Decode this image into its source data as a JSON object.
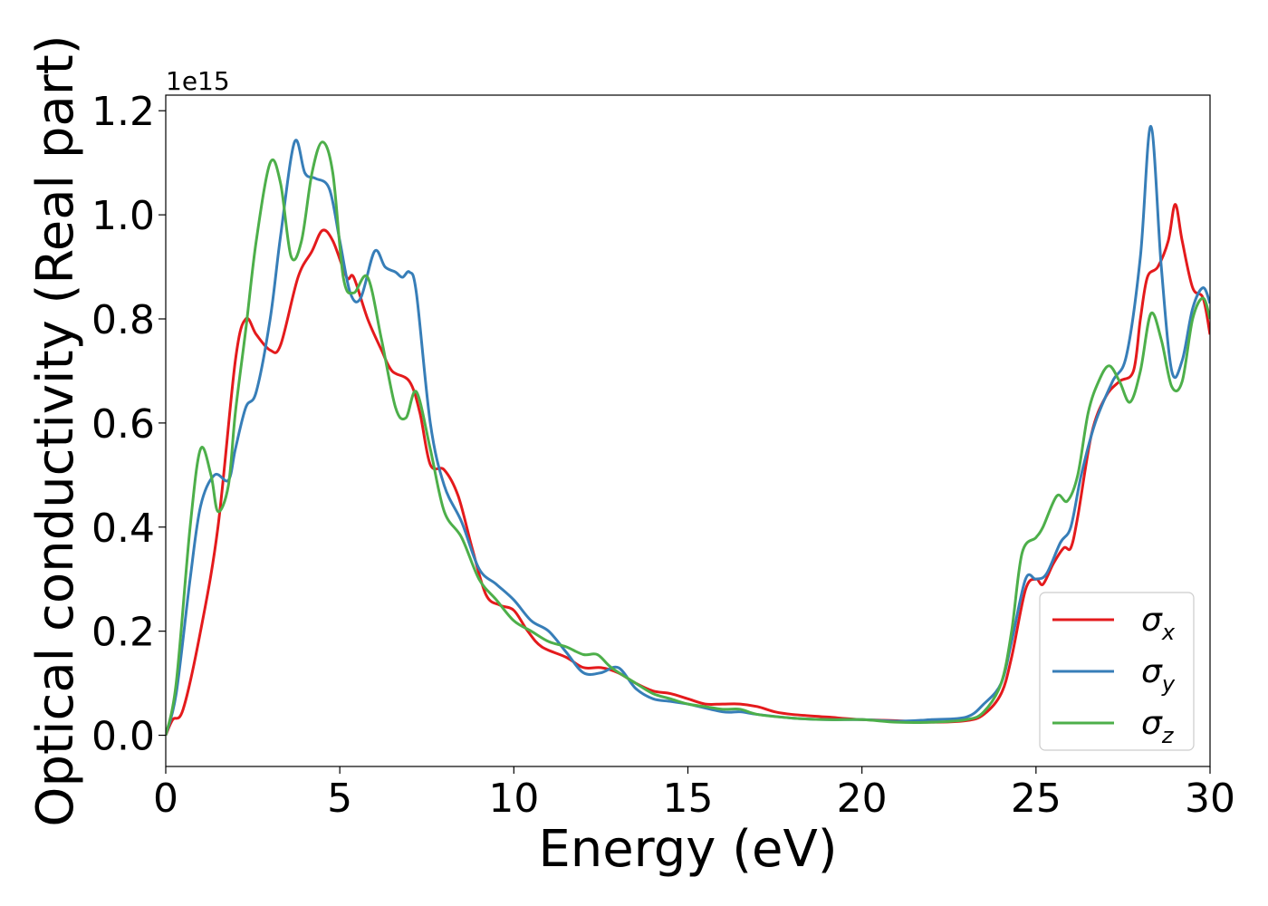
{
  "chart_data": {
    "type": "line",
    "xlabel": "Energy (eV)",
    "ylabel": "Optical conductivity (Real part)",
    "y_offset_label": "1e15",
    "xlim": [
      0,
      30
    ],
    "ylim": [
      -0.06,
      1.23
    ],
    "grid": false,
    "legend_position": "bottom-right",
    "x_ticks": [
      0,
      5,
      10,
      15,
      20,
      25,
      30
    ],
    "x_tick_labels": [
      "0",
      "5",
      "10",
      "15",
      "20",
      "25",
      "30"
    ],
    "y_ticks": [
      0.0,
      0.2,
      0.4,
      0.6,
      0.8,
      1.0,
      1.2
    ],
    "y_tick_labels": [
      "0.0",
      "0.2",
      "0.4",
      "0.6",
      "0.8",
      "1.0",
      "1.2"
    ],
    "series": [
      {
        "name": "σx",
        "name_base": "σ",
        "name_sub": "x",
        "color": "#e41a1c",
        "points": [
          [
            0,
            0
          ],
          [
            0.2,
            0.03
          ],
          [
            0.5,
            0.05
          ],
          [
            1.0,
            0.2
          ],
          [
            1.5,
            0.4
          ],
          [
            2.0,
            0.72
          ],
          [
            2.3,
            0.8
          ],
          [
            2.6,
            0.77
          ],
          [
            3.0,
            0.74
          ],
          [
            3.3,
            0.75
          ],
          [
            3.8,
            0.88
          ],
          [
            4.2,
            0.93
          ],
          [
            4.5,
            0.97
          ],
          [
            4.8,
            0.95
          ],
          [
            5.2,
            0.88
          ],
          [
            5.4,
            0.88
          ],
          [
            5.8,
            0.8
          ],
          [
            6.2,
            0.74
          ],
          [
            6.5,
            0.7
          ],
          [
            7.0,
            0.68
          ],
          [
            7.3,
            0.62
          ],
          [
            7.6,
            0.52
          ],
          [
            8.0,
            0.51
          ],
          [
            8.4,
            0.46
          ],
          [
            8.8,
            0.36
          ],
          [
            9.2,
            0.27
          ],
          [
            9.6,
            0.25
          ],
          [
            10.0,
            0.24
          ],
          [
            10.4,
            0.2
          ],
          [
            10.8,
            0.17
          ],
          [
            11.5,
            0.15
          ],
          [
            12.0,
            0.13
          ],
          [
            12.5,
            0.13
          ],
          [
            13.0,
            0.12
          ],
          [
            13.5,
            0.1
          ],
          [
            14.0,
            0.085
          ],
          [
            14.5,
            0.08
          ],
          [
            15.0,
            0.07
          ],
          [
            15.5,
            0.06
          ],
          [
            16.0,
            0.06
          ],
          [
            16.5,
            0.06
          ],
          [
            17.0,
            0.055
          ],
          [
            17.5,
            0.045
          ],
          [
            18.0,
            0.04
          ],
          [
            19.0,
            0.035
          ],
          [
            20.0,
            0.03
          ],
          [
            21.0,
            0.028
          ],
          [
            22.0,
            0.025
          ],
          [
            23.0,
            0.028
          ],
          [
            23.5,
            0.04
          ],
          [
            24.0,
            0.08
          ],
          [
            24.3,
            0.15
          ],
          [
            24.7,
            0.28
          ],
          [
            25.0,
            0.3
          ],
          [
            25.2,
            0.29
          ],
          [
            25.5,
            0.33
          ],
          [
            25.8,
            0.36
          ],
          [
            26.0,
            0.36
          ],
          [
            26.2,
            0.42
          ],
          [
            26.6,
            0.58
          ],
          [
            27.0,
            0.65
          ],
          [
            27.4,
            0.68
          ],
          [
            27.8,
            0.7
          ],
          [
            28.0,
            0.8
          ],
          [
            28.2,
            0.88
          ],
          [
            28.5,
            0.9
          ],
          [
            28.8,
            0.95
          ],
          [
            29.0,
            1.02
          ],
          [
            29.2,
            0.95
          ],
          [
            29.5,
            0.86
          ],
          [
            29.8,
            0.84
          ],
          [
            30.0,
            0.77
          ]
        ]
      },
      {
        "name": "σy",
        "name_base": "σ",
        "name_sub": "y",
        "color": "#377eb8",
        "points": [
          [
            0,
            0
          ],
          [
            0.3,
            0.08
          ],
          [
            0.7,
            0.3
          ],
          [
            1.0,
            0.44
          ],
          [
            1.4,
            0.5
          ],
          [
            1.8,
            0.49
          ],
          [
            2.0,
            0.55
          ],
          [
            2.3,
            0.63
          ],
          [
            2.6,
            0.66
          ],
          [
            3.0,
            0.8
          ],
          [
            3.3,
            0.96
          ],
          [
            3.7,
            1.14
          ],
          [
            4.0,
            1.08
          ],
          [
            4.3,
            1.07
          ],
          [
            4.7,
            1.05
          ],
          [
            5.0,
            0.95
          ],
          [
            5.3,
            0.85
          ],
          [
            5.6,
            0.84
          ],
          [
            6.0,
            0.93
          ],
          [
            6.3,
            0.9
          ],
          [
            6.6,
            0.89
          ],
          [
            6.8,
            0.88
          ],
          [
            7.0,
            0.89
          ],
          [
            7.2,
            0.85
          ],
          [
            7.6,
            0.6
          ],
          [
            8.0,
            0.48
          ],
          [
            8.5,
            0.41
          ],
          [
            9.0,
            0.32
          ],
          [
            9.5,
            0.29
          ],
          [
            10.0,
            0.26
          ],
          [
            10.5,
            0.22
          ],
          [
            11.0,
            0.2
          ],
          [
            11.5,
            0.16
          ],
          [
            12.0,
            0.12
          ],
          [
            12.5,
            0.12
          ],
          [
            13.0,
            0.13
          ],
          [
            13.5,
            0.09
          ],
          [
            14.0,
            0.07
          ],
          [
            14.5,
            0.065
          ],
          [
            15.0,
            0.06
          ],
          [
            16.0,
            0.045
          ],
          [
            16.5,
            0.045
          ],
          [
            17.0,
            0.04
          ],
          [
            18.0,
            0.033
          ],
          [
            19.0,
            0.03
          ],
          [
            20.0,
            0.03
          ],
          [
            21.0,
            0.027
          ],
          [
            22.0,
            0.03
          ],
          [
            23.0,
            0.035
          ],
          [
            23.5,
            0.06
          ],
          [
            24.0,
            0.1
          ],
          [
            24.3,
            0.18
          ],
          [
            24.7,
            0.3
          ],
          [
            25.0,
            0.3
          ],
          [
            25.3,
            0.31
          ],
          [
            25.7,
            0.37
          ],
          [
            26.0,
            0.4
          ],
          [
            26.3,
            0.5
          ],
          [
            26.7,
            0.6
          ],
          [
            27.2,
            0.68
          ],
          [
            27.6,
            0.73
          ],
          [
            28.0,
            0.92
          ],
          [
            28.3,
            1.17
          ],
          [
            28.6,
            0.9
          ],
          [
            28.9,
            0.7
          ],
          [
            29.2,
            0.72
          ],
          [
            29.5,
            0.82
          ],
          [
            29.8,
            0.86
          ],
          [
            30.0,
            0.83
          ]
        ]
      },
      {
        "name": "σz",
        "name_base": "σ",
        "name_sub": "z",
        "color": "#4daf4a",
        "points": [
          [
            0,
            0
          ],
          [
            0.3,
            0.1
          ],
          [
            0.7,
            0.4
          ],
          [
            1.0,
            0.55
          ],
          [
            1.3,
            0.5
          ],
          [
            1.5,
            0.43
          ],
          [
            1.8,
            0.48
          ],
          [
            2.0,
            0.62
          ],
          [
            2.3,
            0.78
          ],
          [
            2.6,
            0.95
          ],
          [
            3.0,
            1.1
          ],
          [
            3.3,
            1.06
          ],
          [
            3.6,
            0.92
          ],
          [
            3.9,
            0.95
          ],
          [
            4.2,
            1.08
          ],
          [
            4.5,
            1.14
          ],
          [
            4.8,
            1.08
          ],
          [
            5.1,
            0.88
          ],
          [
            5.4,
            0.85
          ],
          [
            5.8,
            0.88
          ],
          [
            6.2,
            0.76
          ],
          [
            6.6,
            0.63
          ],
          [
            6.9,
            0.61
          ],
          [
            7.2,
            0.66
          ],
          [
            7.6,
            0.55
          ],
          [
            8.0,
            0.43
          ],
          [
            8.5,
            0.38
          ],
          [
            9.0,
            0.3
          ],
          [
            9.5,
            0.26
          ],
          [
            10.0,
            0.22
          ],
          [
            10.5,
            0.2
          ],
          [
            11.0,
            0.18
          ],
          [
            11.5,
            0.17
          ],
          [
            12.0,
            0.155
          ],
          [
            12.4,
            0.155
          ],
          [
            12.8,
            0.13
          ],
          [
            13.5,
            0.1
          ],
          [
            14.0,
            0.08
          ],
          [
            14.5,
            0.07
          ],
          [
            15.0,
            0.06
          ],
          [
            15.5,
            0.055
          ],
          [
            16.0,
            0.05
          ],
          [
            16.5,
            0.05
          ],
          [
            17.0,
            0.04
          ],
          [
            18.0,
            0.033
          ],
          [
            19.0,
            0.03
          ],
          [
            20.0,
            0.03
          ],
          [
            21.0,
            0.025
          ],
          [
            22.0,
            0.025
          ],
          [
            23.0,
            0.03
          ],
          [
            23.5,
            0.045
          ],
          [
            24.0,
            0.1
          ],
          [
            24.3,
            0.2
          ],
          [
            24.6,
            0.35
          ],
          [
            25.0,
            0.38
          ],
          [
            25.2,
            0.4
          ],
          [
            25.6,
            0.46
          ],
          [
            25.9,
            0.45
          ],
          [
            26.2,
            0.5
          ],
          [
            26.5,
            0.62
          ],
          [
            26.8,
            0.68
          ],
          [
            27.1,
            0.71
          ],
          [
            27.4,
            0.68
          ],
          [
            27.7,
            0.64
          ],
          [
            28.0,
            0.7
          ],
          [
            28.3,
            0.81
          ],
          [
            28.6,
            0.76
          ],
          [
            28.9,
            0.67
          ],
          [
            29.2,
            0.68
          ],
          [
            29.5,
            0.8
          ],
          [
            29.8,
            0.84
          ],
          [
            30.0,
            0.8
          ]
        ]
      }
    ]
  }
}
